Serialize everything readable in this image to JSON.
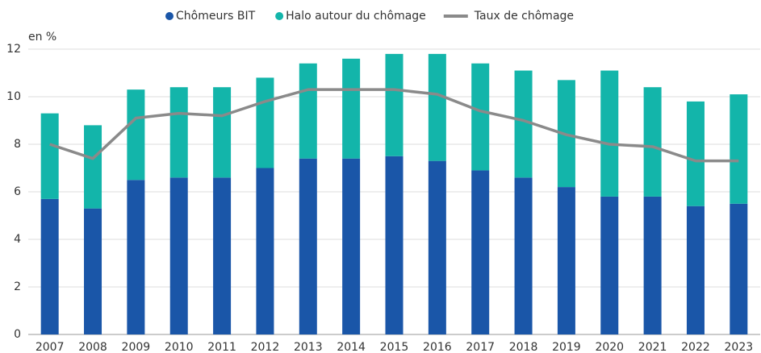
{
  "chart_data": {
    "type": "bar",
    "stacked": true,
    "y_label": "en %",
    "categories": [
      "2007",
      "2008",
      "2009",
      "2010",
      "2011",
      "2012",
      "2013",
      "2014",
      "2015",
      "2016",
      "2017",
      "2018",
      "2019",
      "2020",
      "2021",
      "2022",
      "2023"
    ],
    "series": [
      {
        "name": "Chômeurs BIT",
        "type": "bar",
        "color": "#1a56a8",
        "values": [
          5.7,
          5.3,
          6.5,
          6.6,
          6.6,
          7.0,
          7.4,
          7.4,
          7.5,
          7.3,
          6.9,
          6.6,
          6.2,
          5.8,
          5.8,
          5.4,
          5.5
        ]
      },
      {
        "name": "Halo autour du chômage",
        "type": "bar",
        "color": "#13b5aa",
        "values": [
          3.6,
          3.5,
          3.8,
          3.8,
          3.8,
          3.8,
          4.0,
          4.2,
          4.3,
          4.5,
          4.5,
          4.5,
          4.5,
          5.3,
          4.6,
          4.4,
          4.6
        ]
      },
      {
        "name": "Taux de chômage",
        "type": "line",
        "color": "#8a8a8a",
        "values": [
          8.0,
          7.4,
          9.1,
          9.3,
          9.2,
          9.8,
          10.3,
          10.3,
          10.3,
          10.1,
          9.4,
          9.0,
          8.4,
          8.0,
          7.9,
          7.3,
          7.3
        ]
      }
    ],
    "ylim": [
      0,
      12
    ],
    "yticks": [
      0,
      2,
      4,
      6,
      8,
      10,
      12
    ],
    "grid": true,
    "legend": "top"
  }
}
